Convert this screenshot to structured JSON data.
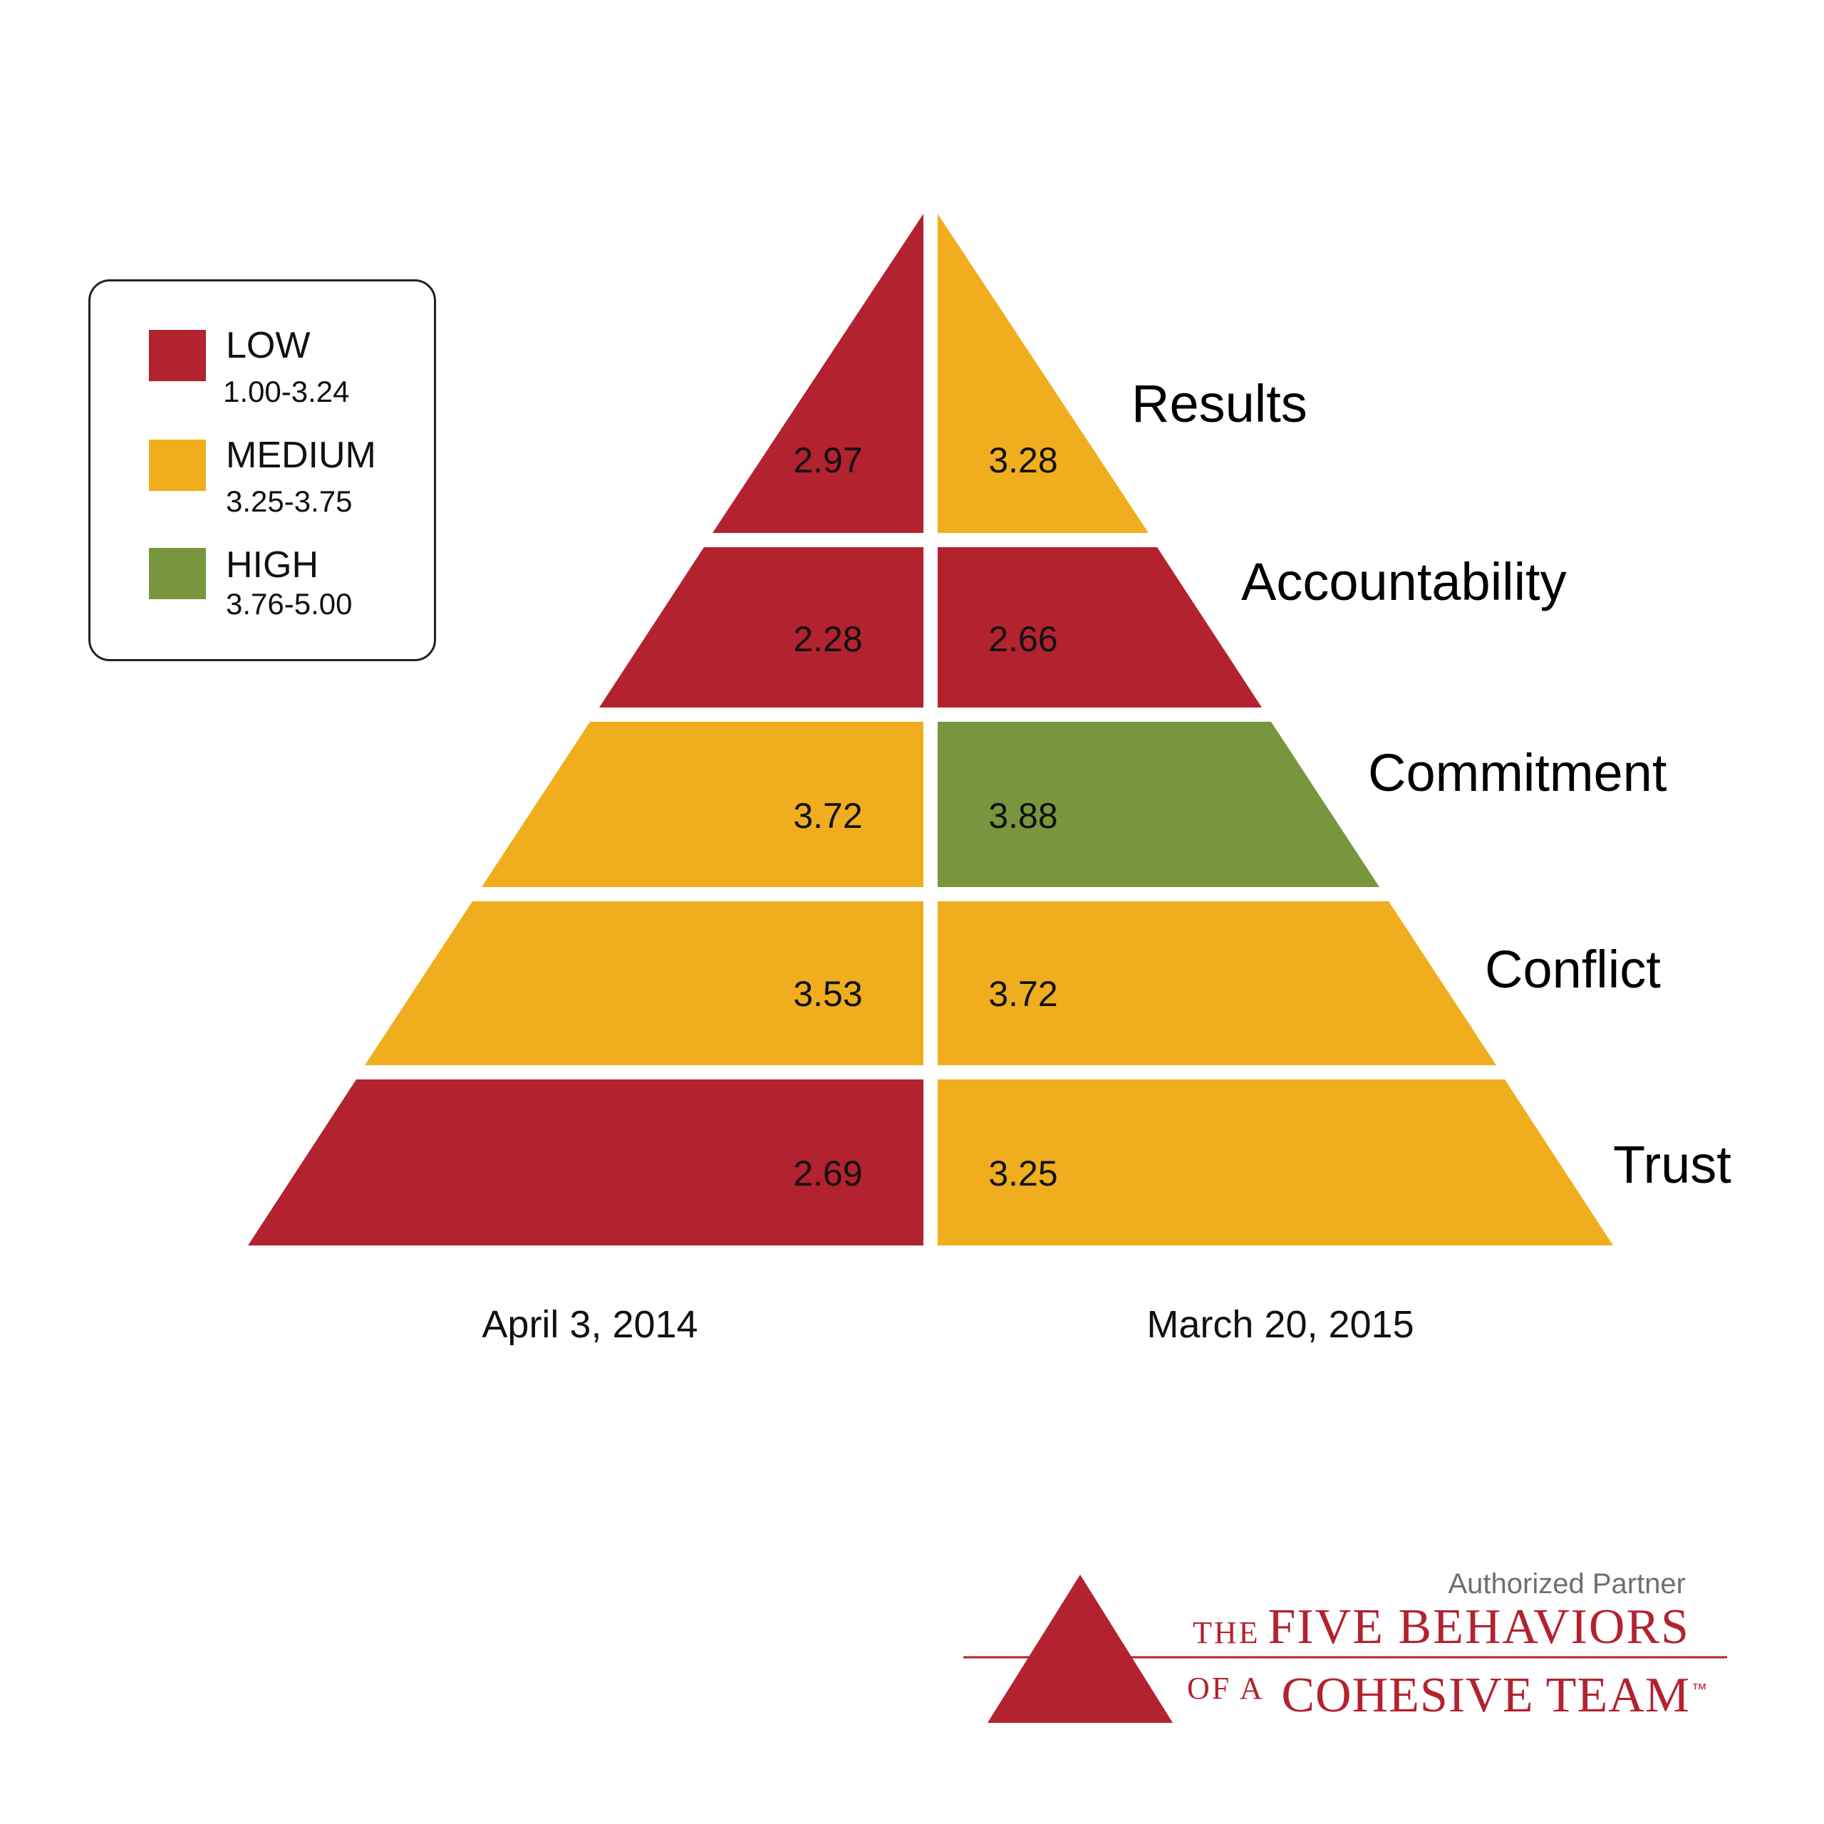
{
  "colors": {
    "low": "#b3222f",
    "medium": "#f0ae1e",
    "high": "#78963d",
    "brand": "#b3222f"
  },
  "legend": [
    {
      "level": "LOW",
      "range": "1.00-3.24",
      "color": "#b3222f"
    },
    {
      "level": "MEDIUM",
      "range": "3.25-3.75",
      "color": "#f0ae1e"
    },
    {
      "level": "HIGH",
      "range": "3.76-5.00",
      "color": "#78963d"
    }
  ],
  "assessments": [
    {
      "date": "April 3, 2014"
    },
    {
      "date": "March 20, 2015"
    }
  ],
  "levels": [
    {
      "name": "Results",
      "left_score": "2.97",
      "left_rating": "low",
      "right_score": "3.28",
      "right_rating": "medium"
    },
    {
      "name": "Accountability",
      "left_score": "2.28",
      "left_rating": "low",
      "right_score": "2.66",
      "right_rating": "low"
    },
    {
      "name": "Commitment",
      "left_score": "3.72",
      "left_rating": "medium",
      "right_score": "3.88",
      "right_rating": "high"
    },
    {
      "name": "Conflict",
      "left_score": "3.53",
      "left_rating": "medium",
      "right_score": "3.72",
      "right_rating": "medium"
    },
    {
      "name": "Trust",
      "left_score": "2.69",
      "left_rating": "low",
      "right_score": "3.25",
      "right_rating": "medium"
    }
  ],
  "logo": {
    "tagline": "Authorized Partner",
    "line1_small": "THE",
    "line1_large": "FIVE BEHAVIORS",
    "line2_small": "OF A",
    "line2_large": "COHESIVE TEAM",
    "trademark": "™"
  }
}
